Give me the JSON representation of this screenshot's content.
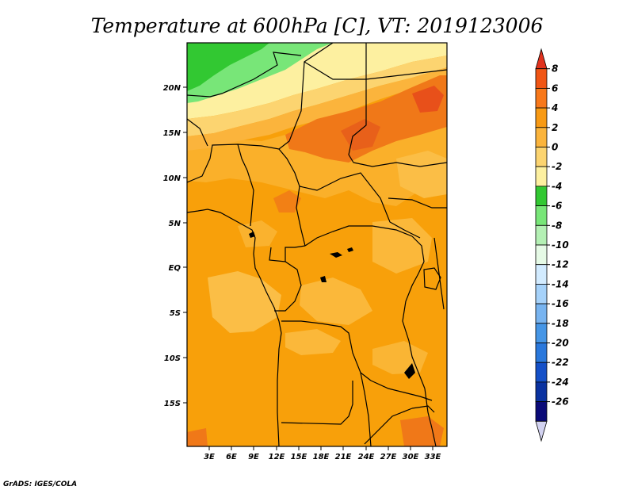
{
  "title": "Temperature at 600hPa [C], VT: 2019123006",
  "credit": "GrADS: IGES/COLA",
  "lat_ticks": [
    "20N",
    "15N",
    "10N",
    "5N",
    "EQ",
    "5S",
    "10S",
    "15S"
  ],
  "lon_ticks": [
    "3E",
    "6E",
    "9E",
    "12E",
    "15E",
    "18E",
    "21E",
    "24E",
    "27E",
    "30E",
    "33E"
  ],
  "colorbar": {
    "labels": [
      "8",
      "6",
      "4",
      "2",
      "0",
      "-2",
      "-4",
      "-6",
      "-8",
      "-10",
      "-12",
      "-14",
      "-16",
      "-18",
      "-20",
      "-22",
      "-24",
      "-26"
    ],
    "colors": [
      "#e0321e",
      "#f05514",
      "#f8781a",
      "#f89a14",
      "#fbb43c",
      "#fcd470",
      "#fdf0a0",
      "#32c832",
      "#78e678",
      "#b4f0b4",
      "#e6fae6",
      "#d2ebff",
      "#a6d2fa",
      "#78b4f0",
      "#4696e6",
      "#2a78dc",
      "#1450c8",
      "#0a32a0",
      "#0a0a78",
      "#d2d2f0"
    ]
  },
  "colors": {
    "background": "#ffffff",
    "border": "#000000",
    "base_field": "#f8a00a",
    "warm": "#f07818",
    "cool": "#fbbe46"
  }
}
